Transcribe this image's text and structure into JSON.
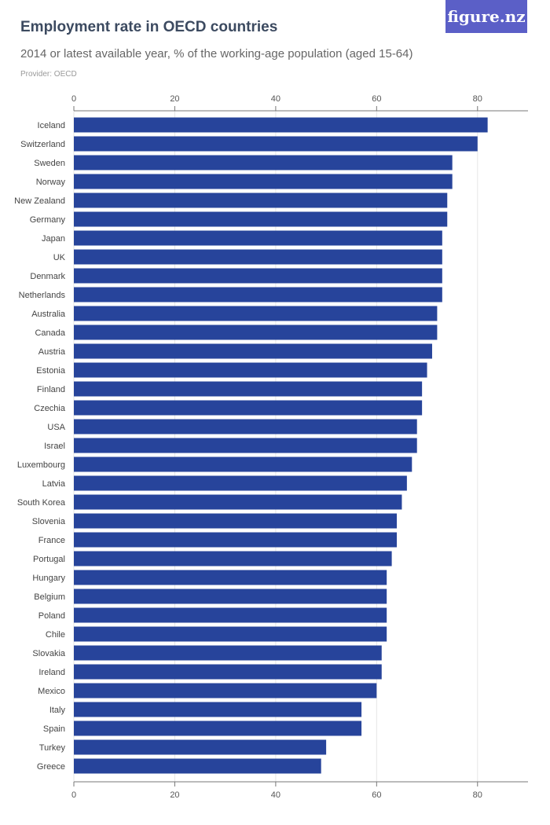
{
  "header": {
    "title": "Employment rate in OECD countries",
    "subtitle": "2014 or latest available year, % of the working-age population (aged 15-64)",
    "provider": "Provider: OECD",
    "logo": "figure.nz"
  },
  "colors": {
    "bar": "#27449b",
    "grid": "#e6e6e6",
    "axis": "#777777"
  },
  "chart_data": {
    "type": "bar",
    "orientation": "horizontal",
    "title": "Employment rate in OECD countries",
    "subtitle": "2014 or latest available year, % of the working-age population (aged 15-64)",
    "xlabel": "",
    "ylabel": "",
    "xlim": [
      0,
      90
    ],
    "ticks": [
      0,
      20,
      40,
      60,
      80
    ],
    "grid": true,
    "categories": [
      "Iceland",
      "Switzerland",
      "Sweden",
      "Norway",
      "New Zealand",
      "Germany",
      "Japan",
      "UK",
      "Denmark",
      "Netherlands",
      "Australia",
      "Canada",
      "Austria",
      "Estonia",
      "Finland",
      "Czechia",
      "USA",
      "Israel",
      "Luxembourg",
      "Latvia",
      "South Korea",
      "Slovenia",
      "France",
      "Portugal",
      "Hungary",
      "Belgium",
      "Poland",
      "Chile",
      "Slovakia",
      "Ireland",
      "Mexico",
      "Italy",
      "Spain",
      "Turkey",
      "Greece"
    ],
    "values": [
      82,
      80,
      75,
      75,
      74,
      74,
      73,
      73,
      73,
      73,
      72,
      72,
      71,
      70,
      69,
      69,
      68,
      68,
      67,
      66,
      65,
      64,
      64,
      63,
      62,
      62,
      62,
      62,
      61,
      61,
      60,
      57,
      57,
      50,
      49
    ]
  }
}
